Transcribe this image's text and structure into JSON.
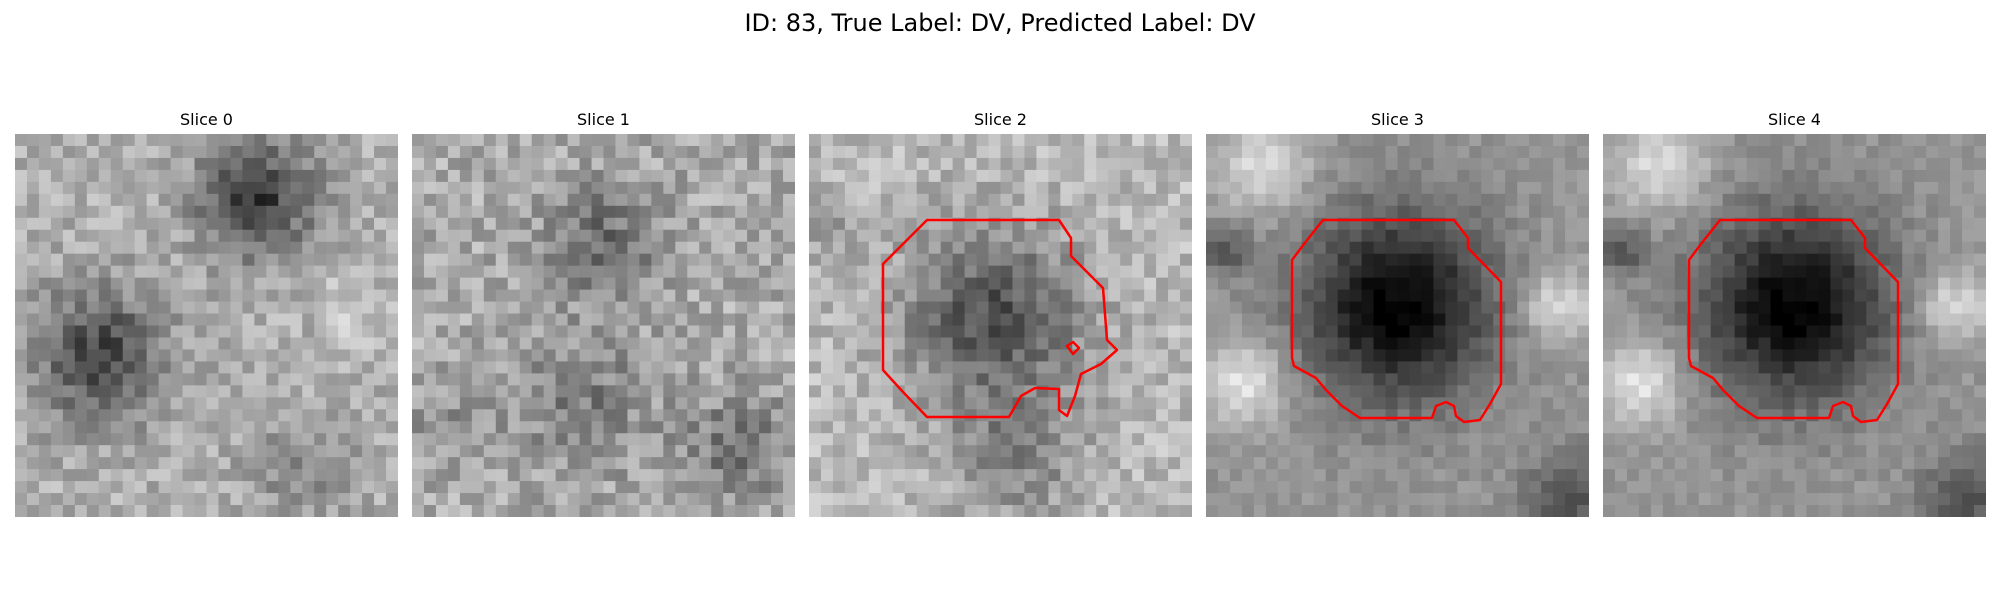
{
  "figure": {
    "title": "ID: 83, True Label: DV, Predicted Label: DV"
  },
  "slices": [
    {
      "title": "Slice 0",
      "has_contour": false
    },
    {
      "title": "Slice 1",
      "has_contour": false
    },
    {
      "title": "Slice 2",
      "has_contour": true
    },
    {
      "title": "Slice 3",
      "has_contour": true
    },
    {
      "title": "Slice 4",
      "has_contour": true
    }
  ],
  "colors": {
    "contour": "#ff0000"
  }
}
